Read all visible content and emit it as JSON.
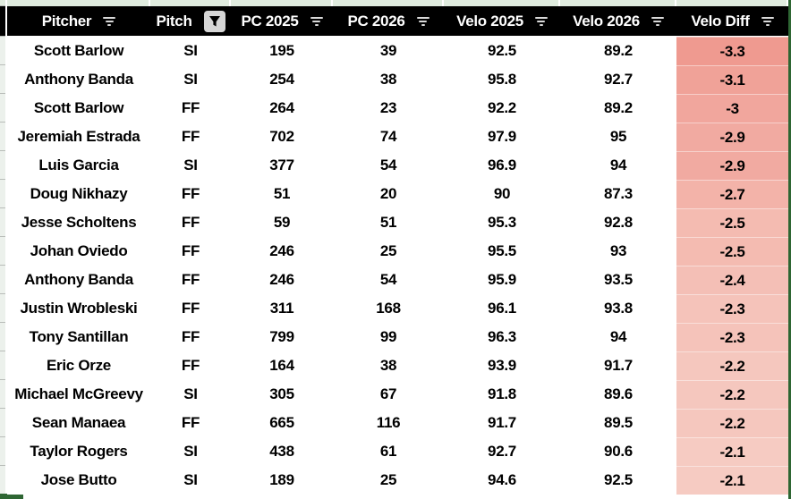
{
  "table": {
    "columns": [
      {
        "label": "Pitcher",
        "icon": "filter-lines"
      },
      {
        "label": "Pitch",
        "icon": "funnel-active"
      },
      {
        "label": "PC 2025",
        "icon": "filter-lines"
      },
      {
        "label": "PC 2026",
        "icon": "filter-lines"
      },
      {
        "label": "Velo 2025",
        "icon": "filter-lines"
      },
      {
        "label": "Velo 2026",
        "icon": "filter-lines"
      },
      {
        "label": "Velo Diff",
        "icon": "filter-lines"
      }
    ],
    "rows": [
      {
        "pitcher": "Scott Barlow",
        "pitch": "SI",
        "pc2025": "195",
        "pc2026": "39",
        "velo2025": "92.5",
        "velo2026": "89.2",
        "velo_diff": "-3.3"
      },
      {
        "pitcher": "Anthony Banda",
        "pitch": "SI",
        "pc2025": "254",
        "pc2026": "38",
        "velo2025": "95.8",
        "velo2026": "92.7",
        "velo_diff": "-3.1"
      },
      {
        "pitcher": "Scott Barlow",
        "pitch": "FF",
        "pc2025": "264",
        "pc2026": "23",
        "velo2025": "92.2",
        "velo2026": "89.2",
        "velo_diff": "-3"
      },
      {
        "pitcher": "Jeremiah Estrada",
        "pitch": "FF",
        "pc2025": "702",
        "pc2026": "74",
        "velo2025": "97.9",
        "velo2026": "95",
        "velo_diff": "-2.9"
      },
      {
        "pitcher": "Luis Garcia",
        "pitch": "SI",
        "pc2025": "377",
        "pc2026": "54",
        "velo2025": "96.9",
        "velo2026": "94",
        "velo_diff": "-2.9"
      },
      {
        "pitcher": "Doug Nikhazy",
        "pitch": "FF",
        "pc2025": "51",
        "pc2026": "20",
        "velo2025": "90",
        "velo2026": "87.3",
        "velo_diff": "-2.7"
      },
      {
        "pitcher": "Jesse Scholtens",
        "pitch": "FF",
        "pc2025": "59",
        "pc2026": "51",
        "velo2025": "95.3",
        "velo2026": "92.8",
        "velo_diff": "-2.5"
      },
      {
        "pitcher": "Johan Oviedo",
        "pitch": "FF",
        "pc2025": "246",
        "pc2026": "25",
        "velo2025": "95.5",
        "velo2026": "93",
        "velo_diff": "-2.5"
      },
      {
        "pitcher": "Anthony Banda",
        "pitch": "FF",
        "pc2025": "246",
        "pc2026": "54",
        "velo2025": "95.9",
        "velo2026": "93.5",
        "velo_diff": "-2.4"
      },
      {
        "pitcher": "Justin Wrobleski",
        "pitch": "FF",
        "pc2025": "311",
        "pc2026": "168",
        "velo2025": "96.1",
        "velo2026": "93.8",
        "velo_diff": "-2.3"
      },
      {
        "pitcher": "Tony Santillan",
        "pitch": "FF",
        "pc2025": "799",
        "pc2026": "99",
        "velo2025": "96.3",
        "velo2026": "94",
        "velo_diff": "-2.3"
      },
      {
        "pitcher": "Eric Orze",
        "pitch": "FF",
        "pc2025": "164",
        "pc2026": "38",
        "velo2025": "93.9",
        "velo2026": "91.7",
        "velo_diff": "-2.2"
      },
      {
        "pitcher": "Michael McGreevy",
        "pitch": "SI",
        "pc2025": "305",
        "pc2026": "67",
        "velo2025": "91.8",
        "velo2026": "89.6",
        "velo_diff": "-2.2"
      },
      {
        "pitcher": "Sean Manaea",
        "pitch": "FF",
        "pc2025": "665",
        "pc2026": "116",
        "velo2025": "91.7",
        "velo2026": "89.5",
        "velo_diff": "-2.2"
      },
      {
        "pitcher": "Taylor Rogers",
        "pitch": "SI",
        "pc2025": "438",
        "pc2026": "61",
        "velo2025": "92.7",
        "velo2026": "90.6",
        "velo_diff": "-2.1"
      },
      {
        "pitcher": "Jose Butto",
        "pitch": "SI",
        "pc2025": "189",
        "pc2026": "25",
        "velo2025": "94.6",
        "velo2026": "92.5",
        "velo_diff": "-2.1"
      }
    ]
  },
  "velo_diff_color_scale": {
    "min_value": -3.3,
    "max_value": -2.1,
    "min_color": "#ef9a90",
    "max_color": "#f6cbc2"
  },
  "colors": {
    "header_bg": "#000000",
    "header_text": "#ffffff",
    "surrounding_cells": "#e0ecdf",
    "edge_green": "#2e6633",
    "funnel_button_bg": "#d6d6d6"
  }
}
